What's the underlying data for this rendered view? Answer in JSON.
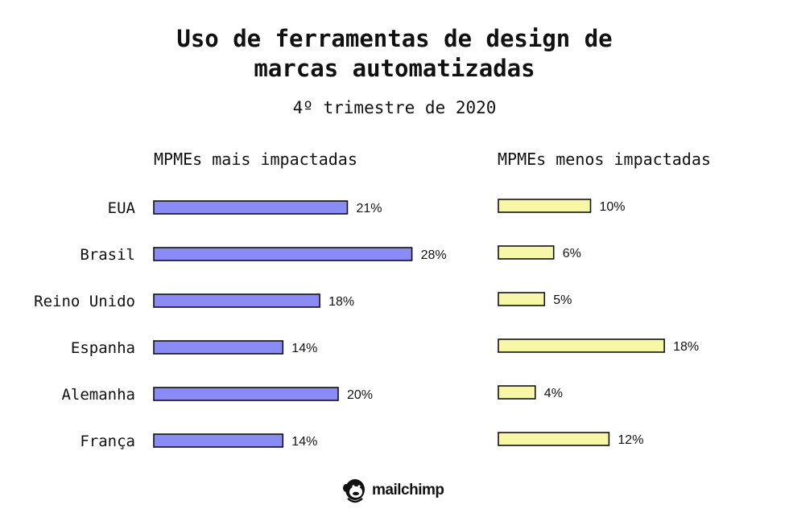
{
  "chart": {
    "title_line1": "Uso de ferramentas de design de",
    "title_line2": "marcas automatizadas",
    "subtitle": "4º trimestre de 2020"
  },
  "chart_data": {
    "type": "bar",
    "orientation": "horizontal",
    "categories": [
      "EUA",
      "Brasil",
      "Reino Unido",
      "Espanha",
      "Alemanha",
      "França"
    ],
    "series": [
      {
        "name": "MPMEs mais impactadas",
        "values": [
          21,
          28,
          18,
          14,
          20,
          14
        ],
        "color": "#8b8bf5"
      },
      {
        "name": "MPMEs menos impactadas",
        "values": [
          10,
          6,
          5,
          18,
          4,
          12
        ],
        "color": "#f7f7a8"
      }
    ],
    "value_suffix": "%",
    "grid": false
  },
  "brand": {
    "logo_text": "mailchimp",
    "logo_icon": "chimp-icon"
  }
}
